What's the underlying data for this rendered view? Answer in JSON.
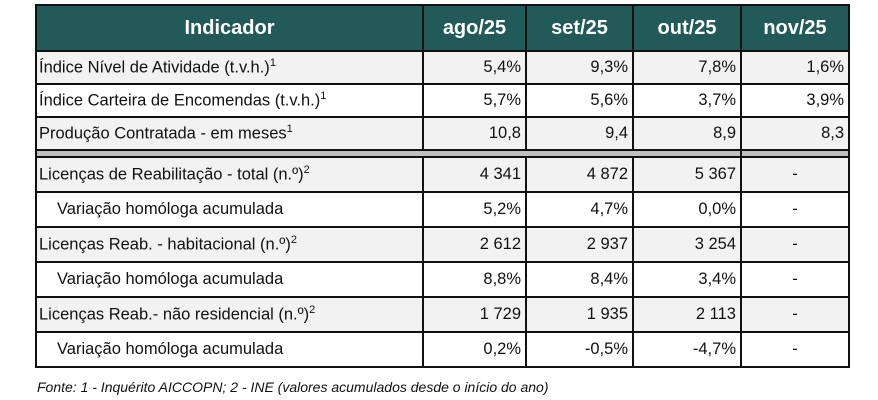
{
  "header": {
    "indicator": "Indicador",
    "months": [
      "ago/25",
      "set/25",
      "out/25",
      "nov/25"
    ]
  },
  "rows": [
    {
      "label": "Índice Nível de Atividade (t.v.h.)",
      "sup": "1",
      "values": [
        "5,4%",
        "9,3%",
        "7,8%",
        "1,6%"
      ],
      "style": "g"
    },
    {
      "label": "Índice Carteira de Encomendas (t.v.h.)",
      "sup": "1",
      "values": [
        "5,7%",
        "5,6%",
        "3,7%",
        "3,9%"
      ],
      "style": "w"
    },
    {
      "label": "Produção Contratada - em meses",
      "sup": "1",
      "values": [
        "10,8",
        "9,4",
        "8,9",
        "8,3"
      ],
      "style": "g"
    },
    {
      "label": "Licenças de Reabilitação - total  (n.º)",
      "sup": "2",
      "values": [
        "4 341",
        "4 872",
        "5 367",
        "-"
      ],
      "style": "g"
    },
    {
      "label": "Variação homóloga acumulada",
      "sup": "",
      "values": [
        "5,2%",
        "4,7%",
        "0,0%",
        "-"
      ],
      "style": "w",
      "sub": true
    },
    {
      "label": "Licenças  Reab. - habitacional  (n.º)",
      "sup": "2",
      "values": [
        "2 612",
        "2 937",
        "3 254",
        "-"
      ],
      "style": "g"
    },
    {
      "label": "Variação homóloga acumulada",
      "sup": "",
      "values": [
        "8,8%",
        "8,4%",
        "3,4%",
        "-"
      ],
      "style": "w",
      "sub": true
    },
    {
      "label": "Licenças Reab.- não residencial  (n.º)",
      "sup": "2",
      "values": [
        "1 729",
        "1 935",
        "2 113",
        "-"
      ],
      "style": "g"
    },
    {
      "label": "Variação homóloga acumulada",
      "sup": "",
      "values": [
        "0,2%",
        "-0,5%",
        "-4,7%",
        "-"
      ],
      "style": "w",
      "sub": true
    }
  ],
  "footer": "Fonte: 1 - Inquérito AICCOPN; 2 - INE (valores acumulados desde o início do ano)",
  "colors": {
    "header_bg": "#215a58",
    "stripe": "#f2f2f2",
    "separator": "#c0c0c0"
  }
}
